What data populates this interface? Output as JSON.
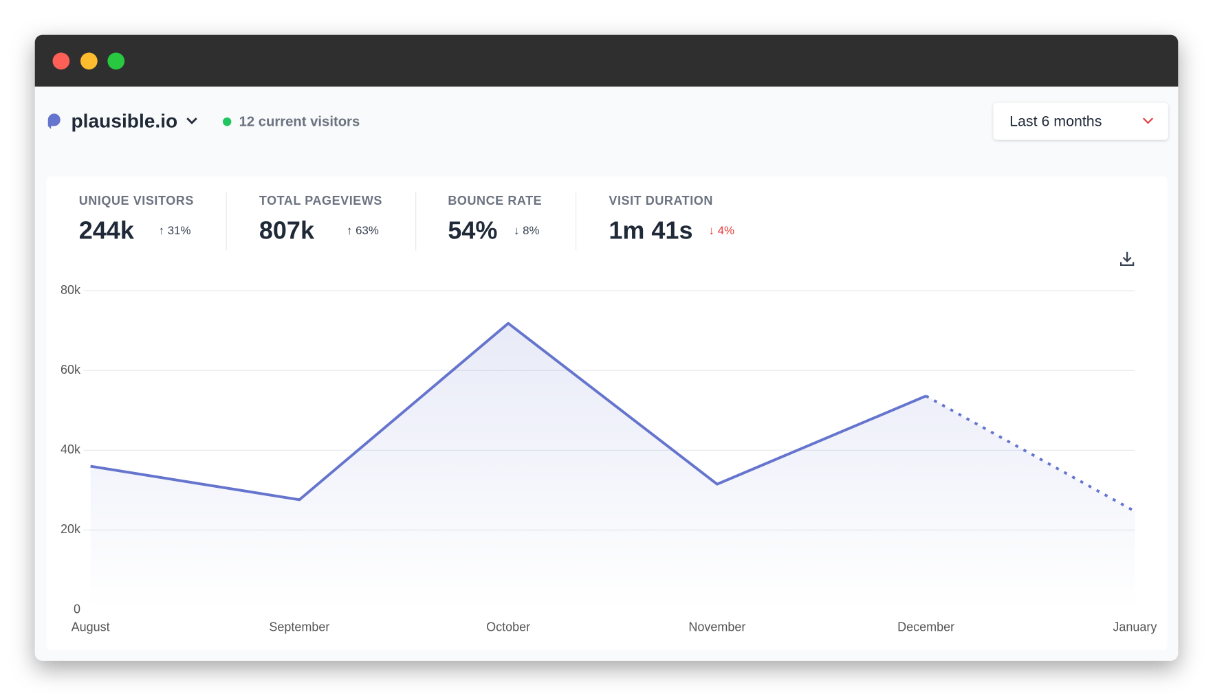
{
  "header": {
    "site": "plausible.io",
    "visitors": "12 current visitors",
    "period": "Last 6 months"
  },
  "stats": [
    {
      "label": "UNIQUE VISITORS",
      "value": "244k",
      "change": "↑ 31%"
    },
    {
      "label": "TOTAL PAGEVIEWS",
      "value": "807k",
      "change": "↑ 63%"
    },
    {
      "label": "BOUNCE RATE",
      "value": "54%",
      "change": "↓ 8%"
    },
    {
      "label": "VISIT DURATION",
      "value": "1m 41s",
      "change": "↓ 4%",
      "change_color": "#e53e3e"
    }
  ],
  "chart_data": {
    "type": "line",
    "categories": [
      "August",
      "September",
      "October",
      "November",
      "December",
      "January"
    ],
    "values": [
      36000,
      27600,
      71800,
      31500,
      53600,
      24700
    ],
    "color": "#6574cd",
    "area": true,
    "dashed_last": true,
    "grid": true,
    "ylim": [
      0,
      80000
    ],
    "yticks": [
      0,
      {
        "value": 20000,
        "label": "20k"
      },
      {
        "value": 40000,
        "label": "40k"
      },
      {
        "value": 60000,
        "label": "60k"
      },
      {
        "value": 80000,
        "label": "80k"
      }
    ]
  }
}
